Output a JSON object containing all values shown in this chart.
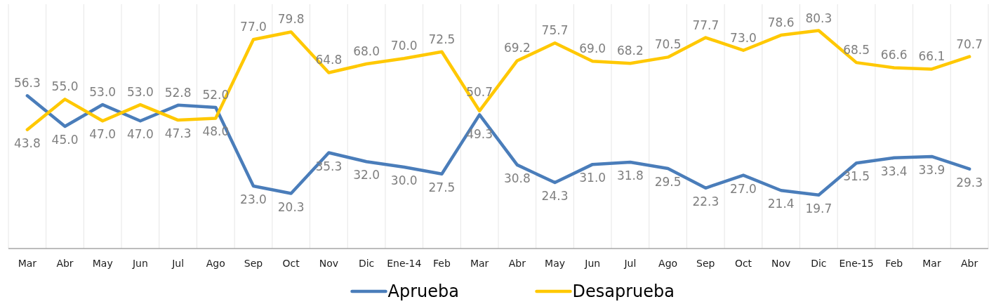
{
  "chart_data": {
    "type": "line",
    "categories": [
      "Mar",
      "Abr",
      "May",
      "Jun",
      "Jul",
      "Ago",
      "Sep",
      "Oct",
      "Nov",
      "Dic",
      "Ene-14",
      "Feb",
      "Mar",
      "Abr",
      "May",
      "Jun",
      "Jul",
      "Ago",
      "Sep",
      "Oct",
      "Nov",
      "Dic",
      "Ene-15",
      "Feb",
      "Mar",
      "Abr"
    ],
    "series": [
      {
        "name": "Aprueba",
        "color": "#4a7dba",
        "values": [
          56.3,
          45.0,
          53.0,
          47.0,
          52.8,
          52.0,
          23.0,
          20.3,
          35.3,
          32.0,
          30.0,
          27.5,
          49.3,
          30.8,
          24.3,
          31.0,
          31.8,
          29.5,
          22.3,
          27.0,
          21.4,
          19.7,
          31.5,
          33.4,
          33.9,
          29.3
        ],
        "value_labels": [
          "56.3",
          "45.0",
          "53.0",
          "47.0",
          "52.8",
          "52.0",
          "23.0",
          "20.3",
          "35.3",
          "32.0",
          "30.0",
          "27.5",
          "49.3",
          "30.8",
          "24.3",
          "31.0",
          "31.8",
          "29.5",
          "22.3",
          "27.0",
          "21.4",
          "19.7",
          "31.5",
          "33.4",
          "33.9",
          "29.3"
        ]
      },
      {
        "name": "Desaprueba",
        "color": "#ffc800",
        "values": [
          43.8,
          55.0,
          47.0,
          53.0,
          47.3,
          48.0,
          77.0,
          79.8,
          64.8,
          68.0,
          70.0,
          72.5,
          50.7,
          69.2,
          75.7,
          69.0,
          68.2,
          70.5,
          77.7,
          73.0,
          78.6,
          80.3,
          68.5,
          66.6,
          66.1,
          70.7
        ],
        "value_labels": [
          "43.8",
          "55.0",
          "47.0",
          "53.0",
          "47.3",
          "48.0",
          "77.0",
          "79.8",
          "64.8",
          "68.0",
          "70.0",
          "72.5",
          "50.7",
          "69.2",
          "75.7",
          "69.0",
          "68.2",
          "70.5",
          "77.7",
          "73.0",
          "78.6",
          "80.3",
          "68.5",
          "66.6",
          "66.1",
          "70.7"
        ]
      }
    ],
    "ylim": [
      0,
      90
    ],
    "tick_labels": "x",
    "grid": "x",
    "legend": "bottom"
  }
}
